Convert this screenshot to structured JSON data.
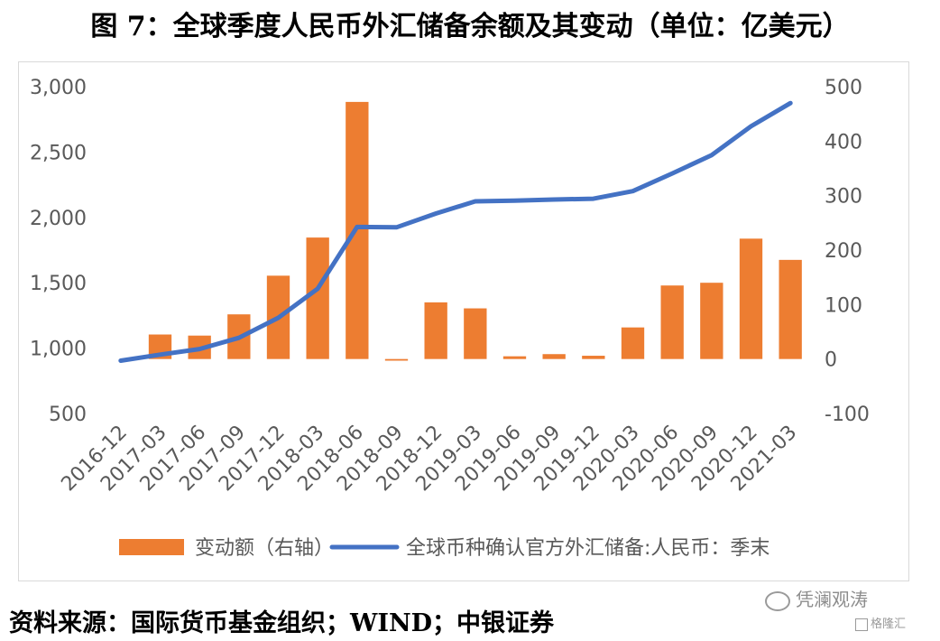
{
  "title": "图 7：全球季度人民币外汇储备余额及其变动（单位：亿美元）",
  "source": "资料来源：国际货币基金组织；WIND；中银证券",
  "watermark": "凭澜观涛",
  "watermark2": "格隆汇",
  "colors": {
    "bar": "#ed7d31",
    "line": "#4472c4",
    "axis_text": "#595959",
    "grid": "#d9d9d9"
  },
  "chart_data": {
    "type": "bar+line",
    "categories": [
      "2016-12",
      "2017-03",
      "2017-06",
      "2017-09",
      "2017-12",
      "2018-03",
      "2018-06",
      "2018-09",
      "2018-12",
      "2019-03",
      "2019-06",
      "2019-09",
      "2019-12",
      "2020-03",
      "2020-06",
      "2020-09",
      "2020-12",
      "2021-03"
    ],
    "series": [
      {
        "name": "变动额（右轴）",
        "type": "bar",
        "axis": "right",
        "values": [
          null,
          45,
          43,
          82,
          153,
          223,
          472,
          -3,
          104,
          93,
          5,
          9,
          6,
          58,
          135,
          140,
          221,
          182
        ]
      },
      {
        "name": "全球币种确认官方外汇储备:人民币：季末",
        "type": "line",
        "axis": "left",
        "values": [
          904,
          950,
          993,
          1079,
          1232,
          1455,
          1927,
          1924,
          2030,
          2123,
          2128,
          2137,
          2143,
          2201,
          2336,
          2476,
          2697,
          2874
        ]
      }
    ],
    "y_left": {
      "ylim": [
        500,
        3000
      ],
      "ticks": [
        "500",
        "1,000",
        "1,500",
        "2,000",
        "2,500",
        "3,000"
      ]
    },
    "y_right": {
      "ylim": [
        -100,
        500
      ],
      "ticks": [
        "-100",
        "0",
        "100",
        "200",
        "300",
        "400",
        "500"
      ]
    },
    "legend_position": "bottom",
    "grid": false
  }
}
